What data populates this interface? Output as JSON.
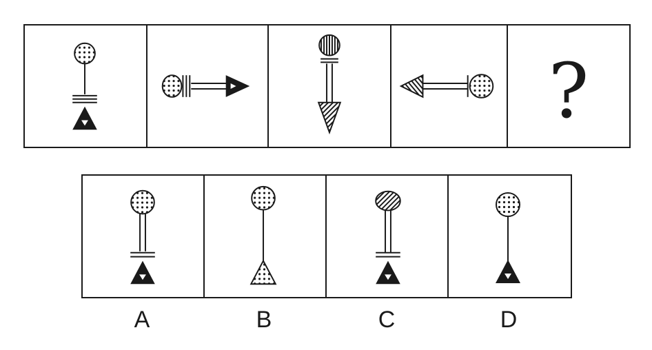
{
  "question": {
    "missing_symbol": "?"
  },
  "options": {
    "labels": [
      "A",
      "B",
      "C",
      "D"
    ]
  }
}
